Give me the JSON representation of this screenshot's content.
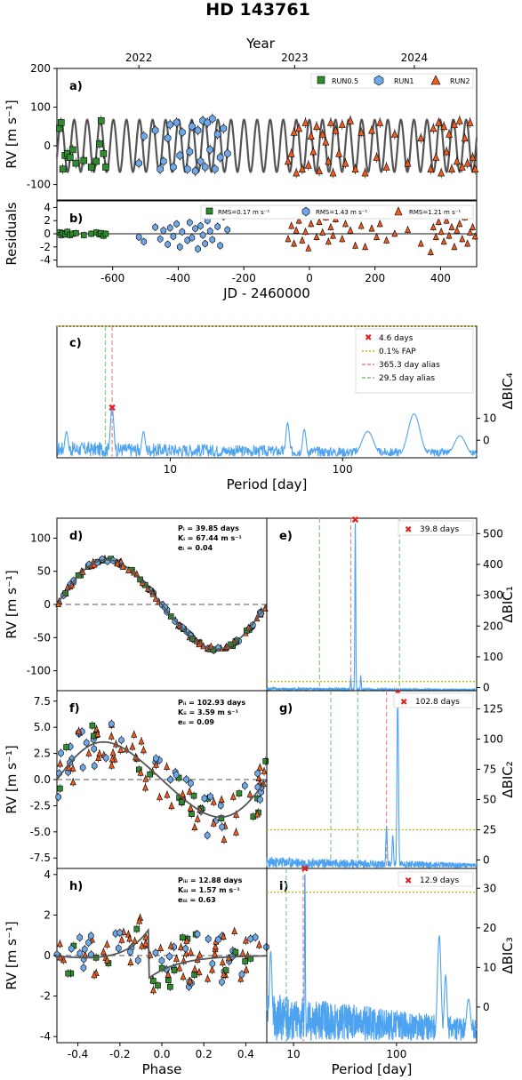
{
  "title": "HD 143761",
  "colors": {
    "run05": "#2e8b2e",
    "run1": "#6fa8e8",
    "run2": "#f05a1e",
    "model": "#555555",
    "periodogram": "#4ea3f0",
    "fap": "#c8b400",
    "alias365": "#f08080",
    "alias29": "#7ac67a",
    "peak": "#e32020"
  },
  "panel_a": {
    "tag": "a)",
    "ylabel": "RV [m s⁻¹]",
    "top_axis_label": "Year",
    "years": [
      {
        "label": "2022",
        "jd": -520
      },
      {
        "label": "2023",
        "jd": -45
      },
      {
        "label": "2024",
        "jd": 320
      }
    ],
    "yticks": [
      200,
      100,
      0,
      -100
    ],
    "ylim": [
      -140,
      200
    ],
    "xlim": [
      -770,
      510
    ],
    "legend": [
      "RUN0.5",
      "RUN1",
      "RUN2"
    ]
  },
  "panel_b": {
    "tag": "b)",
    "ylabel": "Residuals",
    "xlabel": "JD - 2460000",
    "yticks": [
      4,
      2,
      0,
      -2,
      -4
    ],
    "ylim": [
      -5,
      5
    ],
    "xticks": [
      -600,
      -400,
      -200,
      0,
      200,
      400
    ],
    "legend": [
      "RMS=0.17 m s⁻¹",
      "RMS=1.43 m s⁻¹",
      "RMS=1.21 m s⁻¹"
    ]
  },
  "panel_c": {
    "tag": "c)",
    "xlabel": "Period [day]",
    "ylabel": "ΔBIC₄",
    "xticks": [
      {
        "label": "10",
        "v": 10
      },
      {
        "label": "100",
        "v": 100
      }
    ],
    "yticks": [
      10,
      0
    ],
    "legend": [
      "4.6 days",
      "0.1% FAP",
      "365.3 day alias",
      "29.5 day alias"
    ],
    "peak_period": 4.6
  },
  "panel_d": {
    "tag": "d)",
    "ylabel": "RV [m s⁻¹]",
    "yticks": [
      100,
      50,
      0,
      -50,
      -100
    ],
    "lines": [
      "Pᵢ = 39.85 days",
      "Kᵢ = 67.44 m s⁻¹",
      "eᵢ = 0.04"
    ]
  },
  "panel_e": {
    "tag": "e)",
    "ylabel": "ΔBIC₁",
    "yticks": [
      500,
      400,
      300,
      200,
      100,
      0
    ],
    "legend": "39.8 days"
  },
  "panel_f": {
    "tag": "f)",
    "ylabel": "RV [m s⁻¹]",
    "yticks": [
      "7.5",
      "5.0",
      "2.5",
      "0.0",
      "-2.5",
      "-5.0",
      "-7.5"
    ],
    "lines": [
      "Pᵢᵢ = 102.93 days",
      "Kᵢᵢ = 3.59 m s⁻¹",
      "eᵢᵢ = 0.09"
    ]
  },
  "panel_g": {
    "tag": "g)",
    "ylabel": "ΔBIC₂",
    "yticks": [
      125,
      100,
      75,
      50,
      25,
      0
    ],
    "legend": "102.8 days"
  },
  "panel_h": {
    "tag": "h)",
    "ylabel": "RV [m s⁻¹]",
    "yticks": [
      4,
      2,
      0,
      -2,
      -4
    ],
    "xlabel": "Phase",
    "xticks": [
      "-0.4",
      "-0.2",
      "0.0",
      "0.2",
      "0.4"
    ],
    "lines": [
      "Pᵢᵢᵢ = 12.88 days",
      "Kᵢᵢᵢ = 1.57 m s⁻¹",
      "eᵢᵢᵢ = 0.63"
    ]
  },
  "panel_i": {
    "tag": "i)",
    "ylabel": "ΔBIC₃",
    "xlabel": "Period [day]",
    "yticks": [
      30,
      20,
      10,
      0
    ],
    "xticks": [
      {
        "label": "10",
        "v": 10
      },
      {
        "label": "100",
        "v": 100
      }
    ],
    "legend": "12.9 days"
  },
  "chart_data": [
    {
      "type": "scatter",
      "panel": "a",
      "xlabel": "JD - 2460000",
      "ylabel": "RV [m s⁻¹]",
      "ylim": [
        -140,
        200
      ],
      "model": {
        "period": 39.85,
        "amplitude": 67.44
      },
      "series": [
        {
          "name": "RUN0.5",
          "x": [
            -762,
            -757,
            -752,
            -745,
            -738,
            -730,
            -722,
            -712,
            -688,
            -665,
            -650,
            -640,
            -635,
            -628,
            -621
          ],
          "y": [
            45,
            60,
            -60,
            -25,
            -20,
            -30,
            -10,
            -45,
            -38,
            -55,
            -40,
            5,
            65,
            -20,
            -55
          ]
        },
        {
          "name": "RUN1",
          "x": [
            -520,
            -505,
            -470,
            -455,
            -445,
            -432,
            -425,
            -415,
            -405,
            -395,
            -388,
            -372,
            -365,
            -358,
            -348,
            -340,
            -332,
            -325,
            -318,
            -311,
            -303,
            -296,
            -288,
            -280,
            -272,
            -262,
            -250
          ],
          "y": [
            -45,
            25,
            40,
            -60,
            -40,
            20,
            55,
            -55,
            60,
            -25,
            35,
            -60,
            -15,
            50,
            -65,
            40,
            -40,
            65,
            -55,
            60,
            -10,
            70,
            -60,
            30,
            -30,
            45,
            -20
          ]
        },
        {
          "name": "RUN2",
          "x": [
            -65,
            -55,
            -47,
            -40,
            -32,
            -22,
            -12,
            -3,
            5,
            12,
            22,
            30,
            40,
            50,
            58,
            65,
            72,
            80,
            90,
            100,
            110,
            125,
            140,
            158,
            170,
            190,
            205,
            215,
            235,
            260,
            300,
            340,
            370,
            378,
            386,
            394,
            402,
            410,
            418,
            426,
            434,
            442,
            450,
            458,
            466,
            474,
            482,
            490,
            498,
            505
          ],
          "y": [
            -40,
            -20,
            35,
            -70,
            45,
            -60,
            60,
            -50,
            25,
            -15,
            50,
            -65,
            30,
            10,
            -40,
            60,
            -70,
            40,
            -20,
            55,
            -45,
            65,
            -60,
            35,
            -70,
            40,
            -30,
            60,
            -55,
            30,
            -45,
            20,
            -60,
            45,
            -30,
            60,
            -70,
            50,
            -15,
            30,
            -60,
            55,
            -40,
            65,
            -55,
            20,
            -45,
            60,
            -30,
            -60
          ]
        }
      ]
    },
    {
      "type": "scatter",
      "panel": "b",
      "ylabel": "Residuals",
      "ylim": [
        -5,
        5
      ],
      "series": [
        {
          "name": "RUN0.5",
          "rms": 0.17,
          "x": [
            -762,
            -757,
            -752,
            -745,
            -738,
            -730,
            -722,
            -712,
            -688,
            -665,
            -650,
            -640,
            -635,
            -628,
            -621
          ],
          "y": [
            0.2,
            -0.2,
            0.1,
            -0.1,
            0.3,
            -0.2,
            0.0,
            0.1,
            -0.2,
            0.0,
            0.2,
            -0.1,
            0.1,
            -0.3,
            0.0
          ]
        },
        {
          "name": "RUN1",
          "rms": 1.43,
          "x": [
            -520,
            -505,
            -470,
            -455,
            -445,
            -432,
            -425,
            -415,
            -405,
            -395,
            -388,
            -372,
            -365,
            -358,
            -348,
            -340,
            -332,
            -325,
            -318,
            -311,
            -303,
            -296,
            -288,
            -280,
            -272,
            -262,
            -250
          ],
          "y": [
            -0.5,
            -1.2,
            1.0,
            -0.8,
            0.5,
            -1.6,
            0.9,
            -0.4,
            1.5,
            -2.0,
            0.3,
            -1.0,
            1.7,
            -0.6,
            0.8,
            -2.3,
            1.2,
            -0.2,
            -1.5,
            2.0,
            0.4,
            -0.9,
            3.0,
            1.1,
            -1.8,
            2.6,
            0.6
          ]
        },
        {
          "name": "RUN2",
          "rms": 1.21,
          "x": [
            -65,
            -55,
            -47,
            -40,
            -32,
            -22,
            -12,
            -3,
            5,
            12,
            22,
            30,
            40,
            50,
            58,
            65,
            72,
            80,
            90,
            100,
            110,
            125,
            140,
            158,
            170,
            190,
            205,
            215,
            235,
            260,
            300,
            340,
            370,
            378,
            386,
            394,
            402,
            410,
            418,
            426,
            434,
            442,
            450,
            458,
            466,
            474,
            482,
            490,
            498,
            505
          ],
          "y": [
            -0.8,
            1.2,
            -1.5,
            0.5,
            2.0,
            -1.0,
            0.3,
            -2.2,
            1.5,
            3.0,
            -0.5,
            1.8,
            0.2,
            2.5,
            -1.2,
            1.0,
            -0.3,
            2.2,
            3.0,
            -0.8,
            1.5,
            0.5,
            -1.8,
            1.2,
            -2.0,
            0.8,
            -0.5,
            1.5,
            -1.0,
            0.0,
            0.6,
            -1.5,
            -2.8,
            1.0,
            -0.5,
            1.8,
            0.3,
            -1.2,
            2.0,
            -0.3,
            1.0,
            -2.0,
            0.5,
            1.5,
            -0.8,
            2.5,
            -1.5,
            0.2,
            1.0,
            -0.4
          ]
        }
      ]
    },
    {
      "type": "line",
      "panel": "c",
      "xlabel": "Period [day]",
      "ylabel": "ΔBIC₄",
      "xscale": "log",
      "xlim": [
        2.2,
        600
      ],
      "ylim": [
        -8,
        52
      ],
      "fap": 52,
      "aliases": {
        "365.3": 4.6,
        "29.5": 4.2
      },
      "peaks": [
        {
          "x": 2.5,
          "y": 4
        },
        {
          "x": 4.6,
          "y": 15
        },
        {
          "x": 7.0,
          "y": 4
        },
        {
          "x": 48,
          "y": 8
        },
        {
          "x": 60,
          "y": 5
        },
        {
          "x": 140,
          "y": 4
        },
        {
          "x": 260,
          "y": 12
        },
        {
          "x": 480,
          "y": 2
        }
      ]
    },
    {
      "type": "scatter",
      "panel": "d",
      "xlabel": "Phase",
      "ylabel": "RV [m s⁻¹]",
      "ylim": [
        -130,
        130
      ],
      "fit": {
        "amplitude": 67.44,
        "ecc": 0.04
      }
    },
    {
      "type": "line",
      "panel": "e",
      "xlabel": "Period [day]",
      "ylabel": "ΔBIC₁",
      "xscale": "log",
      "ylim": [
        -10,
        550
      ],
      "fap": 20,
      "peak": {
        "x": 39.8,
        "y": 545
      },
      "aliases": [
        17.9,
        36.0,
        107.0
      ]
    },
    {
      "type": "scatter",
      "panel": "f",
      "xlabel": "Phase",
      "ylabel": "RV [m s⁻¹]",
      "ylim": [
        -8.5,
        8.5
      ],
      "fit": {
        "amplitude": 3.59,
        "ecc": 0.09
      }
    },
    {
      "type": "line",
      "panel": "g",
      "xlabel": "Period [day]",
      "ylabel": "ΔBIC₂",
      "xscale": "log",
      "ylim": [
        -7,
        140
      ],
      "fap": 25,
      "peak": {
        "x": 102.8,
        "y": 138
      },
      "aliases": [
        23.0,
        42.0,
        80.0
      ]
    },
    {
      "type": "scatter",
      "panel": "h",
      "xlabel": "Phase",
      "ylabel": "RV [m s⁻¹]",
      "ylim": [
        -4.3,
        4.3
      ],
      "fit": {
        "amplitude": 1.57,
        "ecc": 0.63
      }
    },
    {
      "type": "line",
      "panel": "i",
      "xlabel": "Period [day]",
      "ylabel": "ΔBIC₃",
      "xscale": "log",
      "ylim": [
        -9,
        35
      ],
      "fap": 29,
      "peak": {
        "x": 12.9,
        "y": 35
      },
      "aliases": [
        8.5,
        12.4
      ]
    }
  ]
}
